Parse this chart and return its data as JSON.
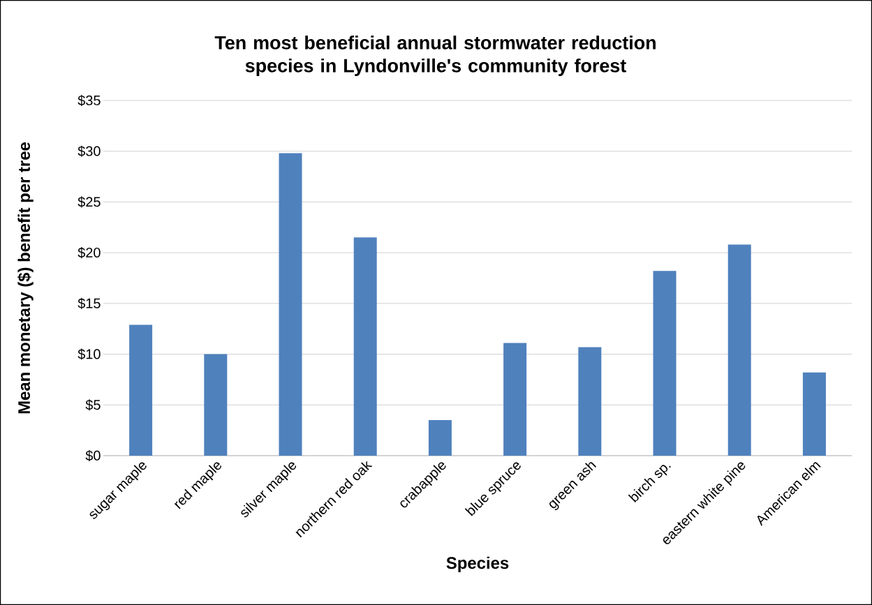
{
  "chart_data": {
    "type": "bar",
    "title": "Ten most beneficial annual stormwater reduction species in Lyndonville's community forest",
    "xlabel": "Species",
    "ylabel": "Mean monetary ($) benefit per tree",
    "categories": [
      "sugar maple",
      "red maple",
      "silver maple",
      "northern red oak",
      "crabapple",
      "blue spruce",
      "green ash",
      "birch sp.",
      "eastern white pine",
      "American elm"
    ],
    "values": [
      12.9,
      10.0,
      29.8,
      21.5,
      3.5,
      11.1,
      10.7,
      18.2,
      20.8,
      8.2
    ],
    "color": "#4f81bd",
    "ylim": [
      0,
      35
    ],
    "yticks": [
      {
        "value": 0,
        "label": "$0"
      },
      {
        "value": 5,
        "label": "$5"
      },
      {
        "value": 10,
        "label": "$10"
      },
      {
        "value": 15,
        "label": "$15"
      },
      {
        "value": 20,
        "label": "$20"
      },
      {
        "value": 25,
        "label": "$25"
      },
      {
        "value": 30,
        "label": "$30"
      },
      {
        "value": 35,
        "label": "$35"
      }
    ],
    "grid": "y"
  }
}
